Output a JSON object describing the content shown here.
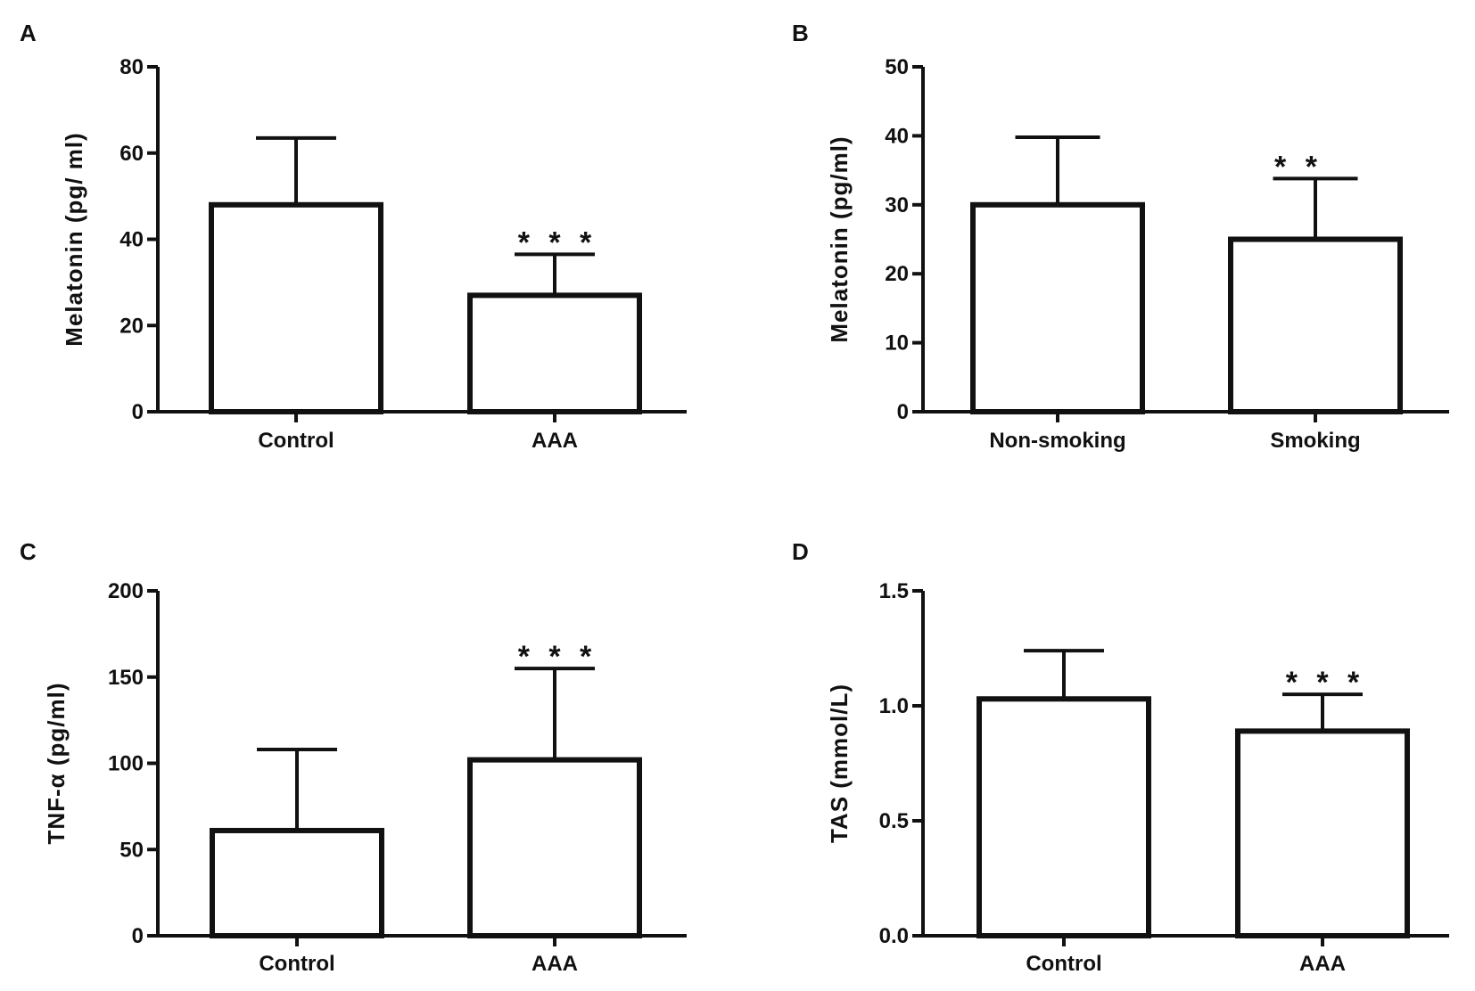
{
  "chart_data": [
    {
      "type": "bar",
      "panel": "A",
      "title": "",
      "xlabel": "",
      "ylabel": "Melatonin (pg/ ml)",
      "ylim": [
        0,
        80
      ],
      "yticks": [
        0,
        20,
        40,
        60,
        80
      ],
      "ytick_labels": [
        "0",
        "20",
        "40",
        "60",
        "80"
      ],
      "grid": false,
      "categories": [
        "Control",
        "AAA"
      ],
      "values": [
        48,
        27
      ],
      "error_upper": [
        63.5,
        36.5
      ],
      "annotations": [
        "",
        "* * *"
      ]
    },
    {
      "type": "bar",
      "panel": "B",
      "title": "",
      "xlabel": "",
      "ylabel": "Melatonin (pg/ml)",
      "ylim": [
        0,
        50
      ],
      "yticks": [
        0,
        10,
        20,
        30,
        40,
        50
      ],
      "ytick_labels": [
        "0",
        "10",
        "20",
        "30",
        "40",
        "50"
      ],
      "grid": false,
      "categories": [
        "Non-smoking",
        "Smoking"
      ],
      "values": [
        30,
        25
      ],
      "error_upper": [
        39.8,
        33.8
      ],
      "annotations": [
        "",
        "* *"
      ]
    },
    {
      "type": "bar",
      "panel": "C",
      "title": "",
      "xlabel": "",
      "ylabel": "TNF-α (pg/ml)",
      "ylim": [
        0,
        200
      ],
      "yticks": [
        0,
        50,
        100,
        150,
        200
      ],
      "ytick_labels": [
        "0",
        "50",
        "100",
        "150",
        "200"
      ],
      "grid": false,
      "categories": [
        "Control",
        "AAA"
      ],
      "values": [
        61,
        102
      ],
      "error_upper": [
        108,
        155
      ],
      "annotations": [
        "",
        "* * *"
      ]
    },
    {
      "type": "bar",
      "panel": "D",
      "title": "",
      "xlabel": "",
      "ylabel": "TAS (mmol/L)",
      "ylim": [
        0,
        1.5
      ],
      "yticks": [
        0,
        0.5,
        1.0,
        1.5
      ],
      "ytick_labels": [
        "0.0",
        "0.5",
        "1.0",
        "1.5"
      ],
      "grid": false,
      "categories": [
        "Control",
        "AAA"
      ],
      "values": [
        1.03,
        0.89
      ],
      "error_upper": [
        1.24,
        1.05
      ],
      "annotations": [
        "",
        "* * *"
      ]
    }
  ],
  "colors": {
    "bar_fill": "#ffffff",
    "stroke": "#111111",
    "background": "#ffffff"
  }
}
